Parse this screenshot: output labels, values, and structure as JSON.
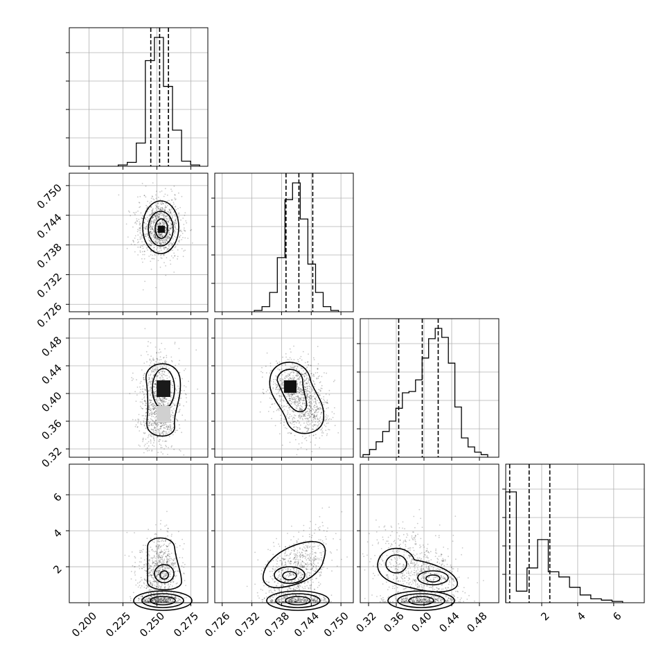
{
  "chart_data": {
    "type": "corner",
    "n_params": 4,
    "params": [
      {
        "ticks": [
          "0.200",
          "0.225",
          "0.250",
          "0.275"
        ],
        "tick_values": [
          0.2,
          0.225,
          0.25,
          0.275
        ],
        "range": [
          0.1855,
          0.2875
        ],
        "quantiles": [
          0.2455,
          0.252,
          0.2585
        ],
        "mean": 0.252,
        "sd": 0.0065,
        "hist_levels": [
          0.01,
          0.03,
          0.18,
          0.82,
          1.0,
          0.62,
          0.28,
          0.04,
          0.01
        ]
      },
      {
        "ticks": [
          "0.726",
          "0.732",
          "0.738",
          "0.744",
          "0.750"
        ],
        "tick_values": [
          0.726,
          0.732,
          0.738,
          0.744,
          0.75
        ],
        "range": [
          0.7245,
          0.7525
        ],
        "quantiles": [
          0.7389,
          0.7415,
          0.7443
        ],
        "mean": 0.7415,
        "sd": 0.0025,
        "hist_levels": [
          0.01,
          0.04,
          0.15,
          0.42,
          0.87,
          1.0,
          0.72,
          0.37,
          0.15,
          0.04,
          0.01
        ]
      },
      {
        "ticks": [
          "0.32",
          "0.36",
          "0.40",
          "0.44",
          "0.48"
        ],
        "tick_values": [
          0.32,
          0.36,
          0.4,
          0.44,
          0.48
        ],
        "range": [
          0.308,
          0.508
        ],
        "quantiles": [
          0.3635,
          0.3975,
          0.4205
        ],
        "mean": 0.395,
        "sd": 0.028,
        "hist_levels": [
          0.02,
          0.06,
          0.12,
          0.2,
          0.28,
          0.38,
          0.5,
          0.51,
          0.6,
          0.77,
          0.92,
          1.0,
          0.93,
          0.73,
          0.39,
          0.15,
          0.08,
          0.04,
          0.02
        ]
      },
      {
        "ticks": [
          "2",
          "4",
          "6"
        ],
        "tick_values": [
          2,
          4,
          6
        ],
        "range": [
          0.0,
          7.7
        ],
        "quantiles": [
          0.22,
          1.3,
          2.45
        ],
        "mean": 1.5,
        "sd": 1.0,
        "hist_levels": [
          0.86,
          0.09,
          0.27,
          0.49,
          0.24,
          0.2,
          0.12,
          0.06,
          0.03,
          0.02,
          0.01
        ]
      }
    ]
  }
}
